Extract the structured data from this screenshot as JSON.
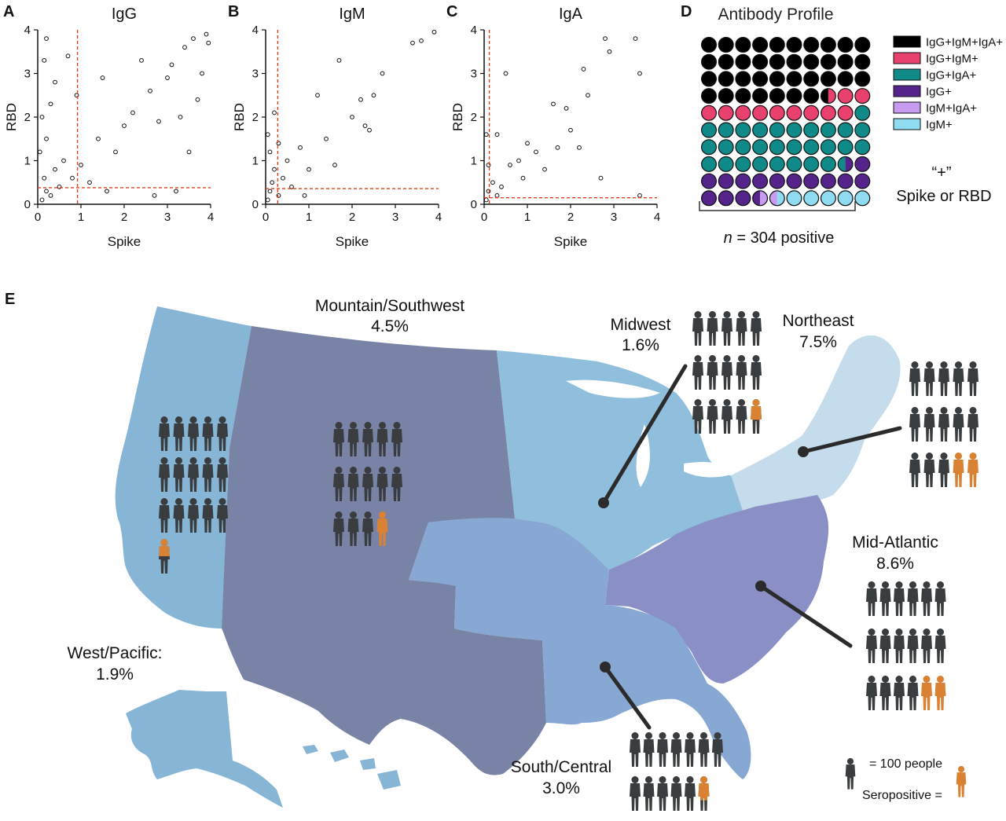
{
  "panels": {
    "A": "A",
    "B": "B",
    "C": "C",
    "D": "D",
    "E": "E"
  },
  "colors": {
    "threshold": "#e0401a",
    "seropositive": "#d98234",
    "person": "#3a3d3f",
    "west_pacific": "#86b5d6",
    "mountain_southwest": "#7883a5",
    "midwest": "#8fbfdc",
    "northeast": "#c4dcec",
    "south_central": "#86a8d3",
    "mid_atlantic": "#8a90c6"
  },
  "chart_data": [
    {
      "type": "scatter",
      "panel": "A",
      "title": "IgG",
      "xlabel": "Spike",
      "ylabel": "RBD",
      "xlim": [
        0,
        4
      ],
      "ylim": [
        0,
        4
      ],
      "x_ticks": [
        "0",
        "1",
        "2",
        "3",
        "4"
      ],
      "y_ticks": [
        "0",
        "1",
        "2",
        "3",
        "4"
      ],
      "thresholds": {
        "x": 0.92,
        "y": 0.38
      },
      "points": [
        [
          0.1,
          0.1
        ],
        [
          0.2,
          0.3
        ],
        [
          0.15,
          0.6
        ],
        [
          0.3,
          0.2
        ],
        [
          0.4,
          0.8
        ],
        [
          0.05,
          1.2
        ],
        [
          0.2,
          1.5
        ],
        [
          0.1,
          2.0
        ],
        [
          0.3,
          2.3
        ],
        [
          0.15,
          3.3
        ],
        [
          0.2,
          3.8
        ],
        [
          0.5,
          0.4
        ],
        [
          0.6,
          1.0
        ],
        [
          0.8,
          0.6
        ],
        [
          1.0,
          0.9
        ],
        [
          1.2,
          0.5
        ],
        [
          1.4,
          1.5
        ],
        [
          1.6,
          0.3
        ],
        [
          1.8,
          1.2
        ],
        [
          2.0,
          1.8
        ],
        [
          2.2,
          2.1
        ],
        [
          2.4,
          3.3
        ],
        [
          2.6,
          2.6
        ],
        [
          2.8,
          1.9
        ],
        [
          3.0,
          2.9
        ],
        [
          3.1,
          3.2
        ],
        [
          3.3,
          2.0
        ],
        [
          3.4,
          3.6
        ],
        [
          3.6,
          3.8
        ],
        [
          3.7,
          2.4
        ],
        [
          3.8,
          3.0
        ],
        [
          3.9,
          3.9
        ],
        [
          3.95,
          3.7
        ],
        [
          3.5,
          1.2
        ],
        [
          3.2,
          0.3
        ],
        [
          2.7,
          0.2
        ],
        [
          0.7,
          3.4
        ],
        [
          0.4,
          2.8
        ],
        [
          0.9,
          2.5
        ],
        [
          1.5,
          2.9
        ]
      ]
    },
    {
      "type": "scatter",
      "panel": "B",
      "title": "IgM",
      "xlabel": "Spike",
      "ylabel": "RBD",
      "xlim": [
        0,
        4
      ],
      "ylim": [
        0,
        4
      ],
      "x_ticks": [
        "0",
        "1",
        "2",
        "3",
        "4"
      ],
      "y_ticks": [
        "0",
        "1",
        "2",
        "3",
        "4"
      ],
      "thresholds": {
        "x": 0.28,
        "y": 0.36
      },
      "points": [
        [
          0.05,
          0.1
        ],
        [
          0.1,
          0.3
        ],
        [
          0.15,
          0.5
        ],
        [
          0.2,
          0.8
        ],
        [
          0.1,
          1.2
        ],
        [
          0.05,
          1.6
        ],
        [
          0.3,
          0.2
        ],
        [
          0.4,
          0.6
        ],
        [
          0.5,
          1.0
        ],
        [
          0.6,
          0.4
        ],
        [
          0.8,
          1.3
        ],
        [
          1.0,
          0.8
        ],
        [
          1.2,
          2.5
        ],
        [
          1.4,
          1.5
        ],
        [
          1.6,
          0.9
        ],
        [
          1.7,
          3.3
        ],
        [
          2.0,
          2.0
        ],
        [
          2.2,
          2.4
        ],
        [
          2.3,
          1.8
        ],
        [
          2.5,
          2.5
        ],
        [
          2.7,
          3.0
        ],
        [
          3.4,
          3.7
        ],
        [
          3.6,
          3.75
        ],
        [
          3.9,
          3.95
        ],
        [
          2.4,
          1.7
        ],
        [
          0.9,
          0.2
        ],
        [
          0.2,
          2.1
        ],
        [
          0.3,
          1.4
        ]
      ]
    },
    {
      "type": "scatter",
      "panel": "C",
      "title": "IgA",
      "xlabel": "Spike",
      "ylabel": "RBD",
      "xlim": [
        0,
        4
      ],
      "ylim": [
        0,
        4
      ],
      "x_ticks": [
        "0",
        "1",
        "2",
        "3",
        "4"
      ],
      "y_ticks": [
        "0",
        "1",
        "2",
        "3",
        "4"
      ],
      "thresholds": {
        "x": 0.12,
        "y": 0.15
      },
      "points": [
        [
          0.05,
          0.1
        ],
        [
          0.1,
          0.3
        ],
        [
          0.2,
          0.5
        ],
        [
          0.3,
          0.2
        ],
        [
          0.1,
          0.9
        ],
        [
          0.05,
          1.6
        ],
        [
          0.4,
          0.4
        ],
        [
          0.5,
          3.0
        ],
        [
          0.6,
          0.9
        ],
        [
          0.8,
          1.0
        ],
        [
          0.9,
          0.6
        ],
        [
          1.0,
          1.4
        ],
        [
          1.2,
          1.2
        ],
        [
          1.4,
          0.8
        ],
        [
          1.6,
          2.3
        ],
        [
          1.7,
          1.3
        ],
        [
          1.9,
          2.2
        ],
        [
          2.0,
          1.7
        ],
        [
          2.2,
          1.3
        ],
        [
          2.3,
          3.1
        ],
        [
          2.4,
          2.5
        ],
        [
          2.8,
          3.8
        ],
        [
          2.9,
          3.5
        ],
        [
          3.5,
          3.8
        ],
        [
          3.6,
          3.0
        ],
        [
          3.6,
          0.2
        ],
        [
          2.7,
          0.6
        ],
        [
          0.3,
          1.6
        ]
      ]
    },
    {
      "type": "waffle",
      "panel": "D",
      "title": "Antibody Profile",
      "n_label_italic": "n",
      "n_label_rest": " = 304 positive",
      "rows": 10,
      "cols": 10,
      "categories": [
        {
          "name": "IgG+IgM+IgA+",
          "color": "#000000",
          "count": 37.5
        },
        {
          "name": "IgG+IgM+",
          "color": "#e8416e",
          "count": 11.5
        },
        {
          "name": "IgG+IgA+",
          "color": "#108a88",
          "count": 29.5
        },
        {
          "name": "IgG+",
          "color": "#55248a",
          "count": 15
        },
        {
          "name": "IgM+IgA+",
          "color": "#c79bef",
          "count": 1
        },
        {
          "name": "IgM+",
          "color": "#8fdcf2",
          "count": 5.5
        }
      ],
      "note_line1": "“+”",
      "note_line2": "Spike or RBD"
    },
    {
      "type": "map",
      "panel": "E",
      "regions": [
        {
          "name": "Mountain/Southwest",
          "value": "4.5%",
          "percent": 4.5
        },
        {
          "name": "Midwest",
          "value": "1.6%",
          "percent": 1.6
        },
        {
          "name": "Northeast",
          "value": "7.5%",
          "percent": 7.5
        },
        {
          "name": "Mid-Atlantic",
          "value": "8.6%",
          "percent": 8.6
        },
        {
          "name": "West/Pacific:",
          "value": "1.9%",
          "percent": 1.9
        },
        {
          "name": "South/Central",
          "value": "3.0%",
          "percent": 3.0
        }
      ],
      "legend": {
        "people_label": "= 100 people",
        "seropositive_label": "Seropositive ="
      }
    }
  ]
}
